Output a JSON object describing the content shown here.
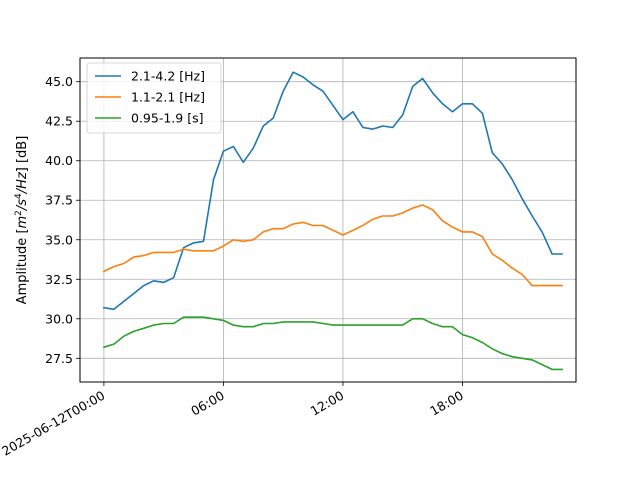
{
  "chart_data": {
    "type": "line",
    "ylabel": "Amplitude [m²/s⁴/Hz] [dB]",
    "ylabel_parts": {
      "prefix": "Amplitude [",
      "m": "m",
      "sq": "2",
      "s": "/s",
      "four": "4",
      "hz": "/Hz",
      "suffix": "] [dB]"
    },
    "xlabel": "",
    "grid": true,
    "legend_position": "top-left",
    "x_hours": [
      0,
      0.5,
      1,
      1.5,
      2,
      2.5,
      3,
      3.5,
      4,
      4.5,
      5,
      5.5,
      6,
      6.5,
      7,
      7.5,
      8,
      8.5,
      9,
      9.5,
      10,
      10.5,
      11,
      11.5,
      12,
      12.5,
      13,
      13.5,
      14,
      14.5,
      15,
      15.5,
      16,
      16.5,
      17,
      17.5,
      18,
      18.5,
      19,
      19.5,
      20,
      20.5,
      21,
      21.5,
      22,
      22.5,
      23
    ],
    "xlim_hours": [
      -1.2,
      23.7
    ],
    "ylim": [
      26.0,
      46.5
    ],
    "x_ticks": [
      {
        "hour": 0,
        "label": "2025-06-12T00:00"
      },
      {
        "hour": 6,
        "label": "06:00"
      },
      {
        "hour": 12,
        "label": "12:00"
      },
      {
        "hour": 18,
        "label": "18:00"
      }
    ],
    "y_ticks": [
      {
        "value": 27.5,
        "label": "27.5"
      },
      {
        "value": 30.0,
        "label": "30.0"
      },
      {
        "value": 32.5,
        "label": "32.5"
      },
      {
        "value": 35.0,
        "label": "35.0"
      },
      {
        "value": 37.5,
        "label": "37.5"
      },
      {
        "value": 40.0,
        "label": "40.0"
      },
      {
        "value": 42.5,
        "label": "42.5"
      },
      {
        "value": 45.0,
        "label": "45.0"
      }
    ],
    "series": [
      {
        "name": "2.1-4.2 [Hz]",
        "color": "#1f77b4",
        "values": [
          30.7,
          30.6,
          31.1,
          31.6,
          32.1,
          32.4,
          32.3,
          32.6,
          34.5,
          34.8,
          34.9,
          38.8,
          40.6,
          40.9,
          39.9,
          40.8,
          42.2,
          42.7,
          44.4,
          45.6,
          45.3,
          44.8,
          44.4,
          43.5,
          42.6,
          43.1,
          42.1,
          42.0,
          42.2,
          42.1,
          42.9,
          44.7,
          45.2,
          44.3,
          43.6,
          43.1,
          43.6,
          43.6,
          43.0,
          40.5,
          39.8,
          38.8,
          37.6,
          36.5,
          35.5,
          34.1,
          34.1
        ]
      },
      {
        "name": "1.1-2.1 [Hz]",
        "color": "#ff7f0e",
        "values": [
          33.0,
          33.3,
          33.5,
          33.9,
          34.0,
          34.2,
          34.2,
          34.2,
          34.4,
          34.3,
          34.3,
          34.3,
          34.6,
          35.0,
          34.9,
          35.0,
          35.5,
          35.7,
          35.7,
          36.0,
          36.1,
          35.9,
          35.9,
          35.6,
          35.3,
          35.6,
          35.9,
          36.3,
          36.5,
          36.5,
          36.7,
          37.0,
          37.2,
          36.9,
          36.2,
          35.8,
          35.5,
          35.5,
          35.2,
          34.1,
          33.7,
          33.2,
          32.8,
          32.1,
          32.1,
          32.1,
          32.1
        ]
      },
      {
        "name": "0.95-1.9 [s]",
        "color": "#2ca02c",
        "values": [
          28.2,
          28.4,
          28.9,
          29.2,
          29.4,
          29.6,
          29.7,
          29.7,
          30.1,
          30.1,
          30.1,
          30.0,
          29.9,
          29.6,
          29.5,
          29.5,
          29.7,
          29.7,
          29.8,
          29.8,
          29.8,
          29.8,
          29.7,
          29.6,
          29.6,
          29.6,
          29.6,
          29.6,
          29.6,
          29.6,
          29.6,
          30.0,
          30.0,
          29.7,
          29.5,
          29.5,
          29.0,
          28.8,
          28.5,
          28.1,
          27.8,
          27.6,
          27.5,
          27.4,
          27.1,
          26.8,
          26.8
        ]
      }
    ]
  }
}
